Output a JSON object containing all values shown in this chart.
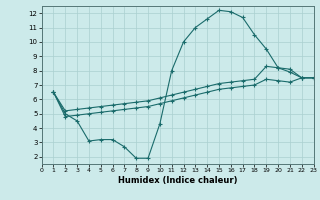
{
  "xlabel": "Humidex (Indice chaleur)",
  "bg_color": "#cceaea",
  "line_color": "#1a6b6b",
  "grid_color": "#aad0d0",
  "xlim": [
    0,
    23
  ],
  "ylim": [
    1.5,
    12.5
  ],
  "xticks": [
    0,
    1,
    2,
    3,
    4,
    5,
    6,
    7,
    8,
    9,
    10,
    11,
    12,
    13,
    14,
    15,
    16,
    17,
    18,
    19,
    20,
    21,
    22,
    23
  ],
  "yticks": [
    2,
    3,
    4,
    5,
    6,
    7,
    8,
    9,
    10,
    11,
    12
  ],
  "line1_x": [
    1,
    2,
    3,
    4,
    5,
    6,
    7,
    8,
    9,
    10,
    11,
    12,
    13,
    14,
    15,
    16,
    17,
    18,
    19,
    20,
    21,
    22,
    23
  ],
  "line1_y": [
    6.5,
    5.0,
    4.5,
    3.1,
    3.2,
    3.2,
    2.7,
    1.9,
    1.9,
    4.3,
    8.0,
    10.0,
    11.0,
    11.6,
    12.2,
    12.1,
    11.7,
    10.5,
    9.5,
    8.2,
    8.1,
    7.5,
    7.5
  ],
  "line2_x": [
    1,
    2,
    3,
    4,
    5,
    6,
    7,
    8,
    9,
    10,
    11,
    12,
    13,
    14,
    15,
    16,
    17,
    18,
    19,
    20,
    21,
    22,
    23
  ],
  "line2_y": [
    6.5,
    5.2,
    5.3,
    5.4,
    5.5,
    5.6,
    5.7,
    5.8,
    5.9,
    6.1,
    6.3,
    6.5,
    6.7,
    6.9,
    7.1,
    7.2,
    7.3,
    7.4,
    8.3,
    8.2,
    7.9,
    7.5,
    7.5
  ],
  "line3_x": [
    1,
    2,
    3,
    4,
    5,
    6,
    7,
    8,
    9,
    10,
    11,
    12,
    13,
    14,
    15,
    16,
    17,
    18,
    19,
    20,
    21,
    22,
    23
  ],
  "line3_y": [
    6.5,
    4.8,
    4.9,
    5.0,
    5.1,
    5.2,
    5.3,
    5.4,
    5.5,
    5.7,
    5.9,
    6.1,
    6.3,
    6.5,
    6.7,
    6.8,
    6.9,
    7.0,
    7.4,
    7.3,
    7.2,
    7.5,
    7.5
  ]
}
